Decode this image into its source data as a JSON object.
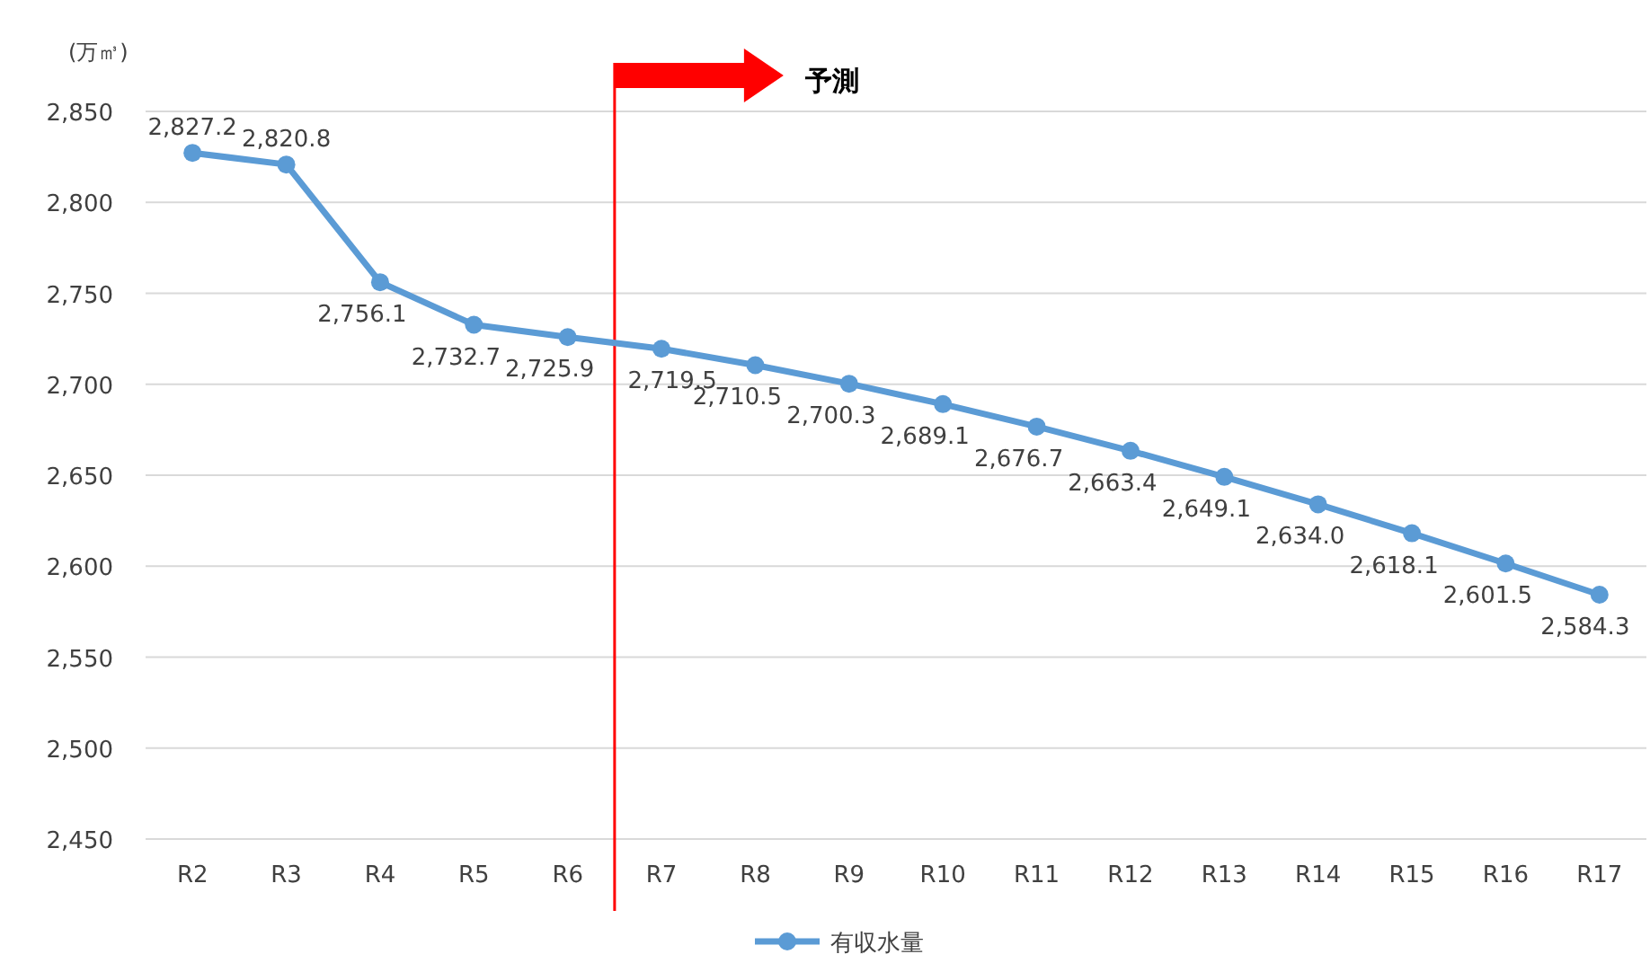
{
  "chart_data": {
    "type": "line",
    "ylabel": "(万㎥)",
    "categories": [
      "R2",
      "R3",
      "R4",
      "R5",
      "R6",
      "R7",
      "R8",
      "R9",
      "R10",
      "R11",
      "R12",
      "R13",
      "R14",
      "R15",
      "R16",
      "R17"
    ],
    "series": [
      {
        "name": "有収水量",
        "color": "#5b9bd5",
        "values": [
          2827.2,
          2820.8,
          2756.1,
          2732.7,
          2725.9,
          2719.5,
          2710.5,
          2700.3,
          2689.1,
          2676.7,
          2663.4,
          2649.1,
          2634.0,
          2618.1,
          2601.5,
          2584.3
        ],
        "value_labels": [
          "2,827.2",
          "2,820.8",
          "2,756.1",
          "2,732.7",
          "2,725.9",
          "2,719.5",
          "2,710.5",
          "2,700.3",
          "2,689.1",
          "2,676.7",
          "2,663.4",
          "2,649.1",
          "2,634.0",
          "2,618.1",
          "2,601.5",
          "2,584.3"
        ]
      }
    ],
    "ylim": [
      2450,
      2850
    ],
    "yticks": [
      {
        "value": 2450,
        "label": "2,450"
      },
      {
        "value": 2500,
        "label": "2,500"
      },
      {
        "value": 2550,
        "label": "2,550"
      },
      {
        "value": 2600,
        "label": "2,600"
      },
      {
        "value": 2650,
        "label": "2,650"
      },
      {
        "value": 2700,
        "label": "2,700"
      },
      {
        "value": 2750,
        "label": "2,750"
      },
      {
        "value": 2800,
        "label": "2,800"
      },
      {
        "value": 2850,
        "label": "2,850"
      }
    ],
    "grid": "y",
    "legend": "bottom",
    "marker": "circle",
    "annotations": [
      "予測"
    ]
  }
}
